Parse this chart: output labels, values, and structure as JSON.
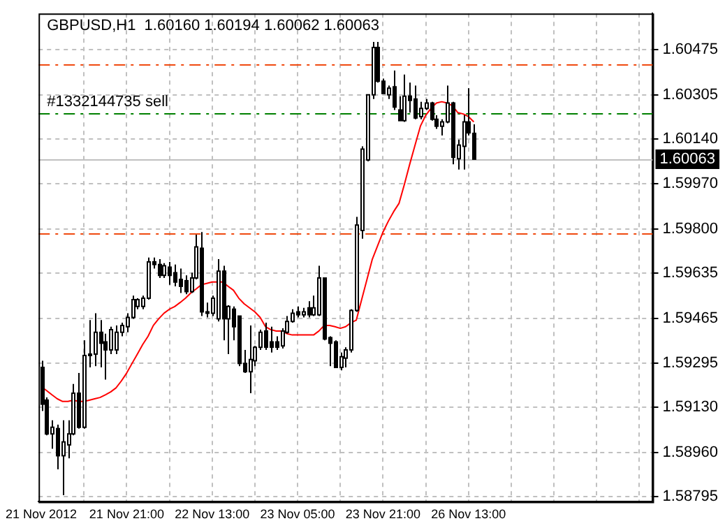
{
  "chart_data": {
    "type": "candlestick",
    "title": "GBPUSD,H1  1.60160 1.60194 1.60062 1.60063",
    "categories": [
      "21 Nov 2012",
      null,
      null,
      null,
      null,
      null,
      null,
      null,
      null,
      null,
      null,
      null,
      null,
      null,
      null,
      null,
      "21 Nov 21:00",
      null,
      null,
      null,
      null,
      null,
      null,
      null,
      null,
      null,
      null,
      null,
      null,
      null,
      null,
      null,
      "22 Nov 13:00",
      null,
      null,
      null,
      null,
      null,
      null,
      null,
      null,
      null,
      null,
      null,
      null,
      null,
      null,
      null,
      "23 Nov 05:00",
      null,
      null,
      null,
      null,
      null,
      null,
      null,
      null,
      null,
      null,
      null,
      null,
      null,
      null,
      null,
      "23 Nov 21:00",
      null,
      null,
      null,
      null,
      null,
      null,
      null,
      null,
      null,
      null,
      null,
      null,
      null,
      null,
      null,
      "26 Nov 13:00",
      null,
      null,
      null,
      null,
      null,
      null,
      null,
      null,
      null,
      null,
      null,
      null,
      null,
      null,
      null,
      null,
      null,
      null,
      null,
      null,
      null,
      null,
      null,
      null,
      null,
      null,
      null,
      null,
      null,
      null,
      null,
      null,
      null,
      null
    ],
    "ohlc": [
      [
        1.5928,
        1.59305,
        1.59116,
        1.59142
      ],
      [
        1.59157,
        1.59167,
        1.59025,
        1.5903
      ],
      [
        1.5903,
        1.59081,
        1.58974,
        1.59055
      ],
      [
        1.5905,
        1.59065,
        1.58897,
        1.58948
      ],
      [
        1.58948,
        1.59081,
        1.588,
        1.59
      ],
      [
        1.58989,
        1.59081,
        1.58938,
        1.5903
      ],
      [
        1.5903,
        1.59218,
        1.59025,
        1.59183
      ],
      [
        1.59183,
        1.59259,
        1.5905,
        1.59055
      ],
      [
        1.59055,
        1.59382,
        1.5905,
        1.59325
      ],
      [
        1.59325,
        1.59458,
        1.5928,
        1.5933
      ],
      [
        1.5933,
        1.59484,
        1.59285,
        1.59412
      ],
      [
        1.59412,
        1.59458,
        1.5928,
        1.59371
      ],
      [
        1.59376,
        1.59407,
        1.59234,
        1.59346
      ],
      [
        1.59346,
        1.59433,
        1.5933,
        1.59422
      ],
      [
        1.59346,
        1.59438,
        1.5933,
        1.59412
      ],
      [
        1.59412,
        1.59448,
        1.59397,
        1.59438
      ],
      [
        1.59433,
        1.59484,
        1.59412,
        1.59468
      ],
      [
        1.59468,
        1.5955,
        1.59463,
        1.59535
      ],
      [
        1.59509,
        1.5954,
        1.59499,
        1.59535
      ],
      [
        1.59509,
        1.5955,
        1.59499,
        1.5954
      ],
      [
        1.5954,
        1.59693,
        1.59535,
        1.59677
      ],
      [
        1.59677,
        1.59693,
        1.59652,
        1.59667
      ],
      [
        1.59667,
        1.59687,
        1.59616,
        1.59626
      ],
      [
        1.59626,
        1.59672,
        1.59616,
        1.59662
      ],
      [
        1.59657,
        1.59677,
        1.59591,
        1.59626
      ],
      [
        1.59636,
        1.59667,
        1.59585,
        1.59601
      ],
      [
        1.59611,
        1.59652,
        1.5956,
        1.59585
      ],
      [
        1.59606,
        1.59626,
        1.59555,
        1.59565
      ],
      [
        1.59565,
        1.59636,
        1.5956,
        1.59616
      ],
      [
        1.59616,
        1.59779,
        1.59611,
        1.59733
      ],
      [
        1.59728,
        1.59789,
        1.59473,
        1.59489
      ],
      [
        1.59489,
        1.59524,
        1.59468,
        1.59484
      ],
      [
        1.59484,
        1.5955,
        1.59473,
        1.5954
      ],
      [
        1.59463,
        1.59687,
        1.59453,
        1.59642
      ],
      [
        1.59642,
        1.59662,
        1.59382,
        1.59463
      ],
      [
        1.59463,
        1.59514,
        1.5933,
        1.59509
      ],
      [
        1.59499,
        1.59509,
        1.59382,
        1.59433
      ],
      [
        1.59473,
        1.59473,
        1.59285,
        1.59295
      ],
      [
        1.59295,
        1.59346,
        1.59259,
        1.59264
      ],
      [
        1.59264,
        1.59438,
        1.59183,
        1.5931
      ],
      [
        1.59305,
        1.59361,
        1.59285,
        1.59356
      ],
      [
        1.59356,
        1.59422,
        1.59346,
        1.59412
      ],
      [
        1.59417,
        1.59448,
        1.59346,
        1.59356
      ],
      [
        1.59376,
        1.59433,
        1.59336,
        1.59356
      ],
      [
        1.59376,
        1.59397,
        1.59346,
        1.59356
      ],
      [
        1.59361,
        1.59427,
        1.59351,
        1.59417
      ],
      [
        1.59412,
        1.59473,
        1.59407,
        1.59453
      ],
      [
        1.59453,
        1.59499,
        1.59448,
        1.59484
      ],
      [
        1.59489,
        1.59509,
        1.59468,
        1.59478
      ],
      [
        1.59478,
        1.59504,
        1.59468,
        1.59489
      ],
      [
        1.59504,
        1.59529,
        1.59468,
        1.59478
      ],
      [
        1.59478,
        1.5955,
        1.59473,
        1.59504
      ],
      [
        1.59478,
        1.59662,
        1.59473,
        1.59616
      ],
      [
        1.59616,
        1.59616,
        1.59382,
        1.59387
      ],
      [
        1.59392,
        1.59397,
        1.59285,
        1.59371
      ],
      [
        1.59376,
        1.59382,
        1.5928,
        1.5928
      ],
      [
        1.5928,
        1.59336,
        1.59269,
        1.5932
      ],
      [
        1.59315,
        1.59356,
        1.5928,
        1.59346
      ],
      [
        1.59346,
        1.59499,
        1.59336,
        1.59494
      ],
      [
        1.59494,
        1.59846,
        1.59489,
        1.59815
      ],
      [
        1.59795,
        1.60111,
        1.59764,
        1.60101
      ],
      [
        1.6006,
        1.60305,
        1.60055,
        1.60305
      ],
      [
        1.60305,
        1.60504,
        1.60289,
        1.60483
      ],
      [
        1.60483,
        1.60504,
        1.60351,
        1.60356
      ],
      [
        1.60356,
        1.60366,
        1.6031,
        1.6031
      ],
      [
        1.60305,
        1.6034,
        1.60289,
        1.6033
      ],
      [
        1.60335,
        1.60396,
        1.60248,
        1.60259
      ],
      [
        1.60248,
        1.603,
        1.60208,
        1.60208
      ],
      [
        1.60208,
        1.60381,
        1.60203,
        1.603
      ],
      [
        1.603,
        1.60351,
        1.60238,
        1.60284
      ],
      [
        1.60289,
        1.6034,
        1.60213,
        1.60218
      ],
      [
        1.60223,
        1.60279,
        1.60213,
        1.60254
      ],
      [
        1.60254,
        1.60289,
        1.60248,
        1.60274
      ],
      [
        1.60274,
        1.60279,
        1.60208,
        1.60213
      ],
      [
        1.60213,
        1.60228,
        1.60177,
        1.60187
      ],
      [
        1.60187,
        1.60213,
        1.60152,
        1.60203
      ],
      [
        1.60203,
        1.6034,
        1.60198,
        1.60274
      ],
      [
        1.60274,
        1.60279,
        1.60044,
        1.6007
      ],
      [
        1.60065,
        1.60136,
        1.60024,
        1.60116
      ],
      [
        1.60111,
        1.60228,
        1.60024,
        1.60203
      ],
      [
        1.60203,
        1.6033,
        1.60152,
        1.60162
      ],
      [
        1.6016,
        1.60194,
        1.60062,
        1.60063
      ],
      null,
      null,
      null,
      null,
      null,
      null,
      null,
      null,
      null,
      null,
      null,
      null,
      null,
      null,
      null,
      null,
      null,
      null,
      null,
      null,
      null,
      null,
      null,
      null,
      null,
      null,
      null,
      null,
      null,
      null,
      null,
      null,
      null
    ],
    "series": [
      {
        "type": "line",
        "color": "#ff0000",
        "values": [
          1.59208,
          1.59193,
          1.59177,
          1.59162,
          1.59152,
          1.59152,
          1.59157,
          1.59152,
          1.59152,
          1.59157,
          1.59162,
          1.59167,
          1.59177,
          1.59188,
          1.59203,
          1.59229,
          1.59259,
          1.59295,
          1.5933,
          1.59366,
          1.59397,
          1.59438,
          1.59463,
          1.59484,
          1.59499,
          1.59509,
          1.59524,
          1.5954,
          1.5956,
          1.59575,
          1.59591,
          1.59596,
          1.59601,
          1.59601,
          1.59601,
          1.59585,
          1.5957,
          1.5954,
          1.59519,
          1.59504,
          1.59489,
          1.59468,
          1.59433,
          1.59422,
          1.59417,
          1.59417,
          1.59407,
          1.59402,
          1.59402,
          1.59402,
          1.59402,
          1.59402,
          1.59417,
          1.59438,
          1.59438,
          1.59433,
          1.59427,
          1.59433,
          1.59448,
          1.59458,
          1.59535,
          1.59611,
          1.59687,
          1.59738,
          1.59789,
          1.5983,
          1.59866,
          1.59897,
          1.59968,
          1.60044,
          1.60116,
          1.60187,
          1.60228,
          1.60254,
          1.60274,
          1.60279,
          1.60274,
          1.60264,
          1.60238,
          1.60233,
          1.60223,
          1.60203,
          null,
          null,
          null,
          null,
          null,
          null,
          null,
          null,
          null,
          null,
          null,
          null,
          null,
          null,
          null,
          null,
          null,
          null,
          null,
          null,
          null,
          null,
          null,
          null,
          null,
          null,
          null,
          null,
          null,
          null,
          null,
          null,
          null
        ]
      }
    ],
    "ylim": [
      1.58775,
      1.60611
    ],
    "yticks": [
      1.58795,
      {
        "value": 1.5896,
        "label": "1.58960"
      },
      {
        "value": 1.5913,
        "label": "1.59130"
      },
      1.59295,
      1.59465,
      1.59635,
      {
        "value": 1.598,
        "label": "1.59800"
      },
      {
        "value": 1.5997,
        "label": "1.59970"
      },
      {
        "value": 1.6014,
        "label": "1.60140"
      },
      1.60305,
      1.60475
    ],
    "ref_lines": [
      {
        "axis": "y",
        "value": 1.60421,
        "color": "#f04a10",
        "line_style": "dashed"
      },
      {
        "axis": "y",
        "value": 1.59782,
        "color": "#f04a10",
        "line_style": "dashed"
      },
      {
        "axis": "y",
        "value": 1.60237,
        "color": "#008000",
        "line_style": "dashed",
        "label": "#1332144735 sell"
      },
      {
        "axis": "y",
        "value": 1.60063,
        "color": "#c0c0c0",
        "line_style": "solid",
        "label": "1.60063"
      }
    ],
    "grid": true,
    "legend": false,
    "marker": "none"
  }
}
